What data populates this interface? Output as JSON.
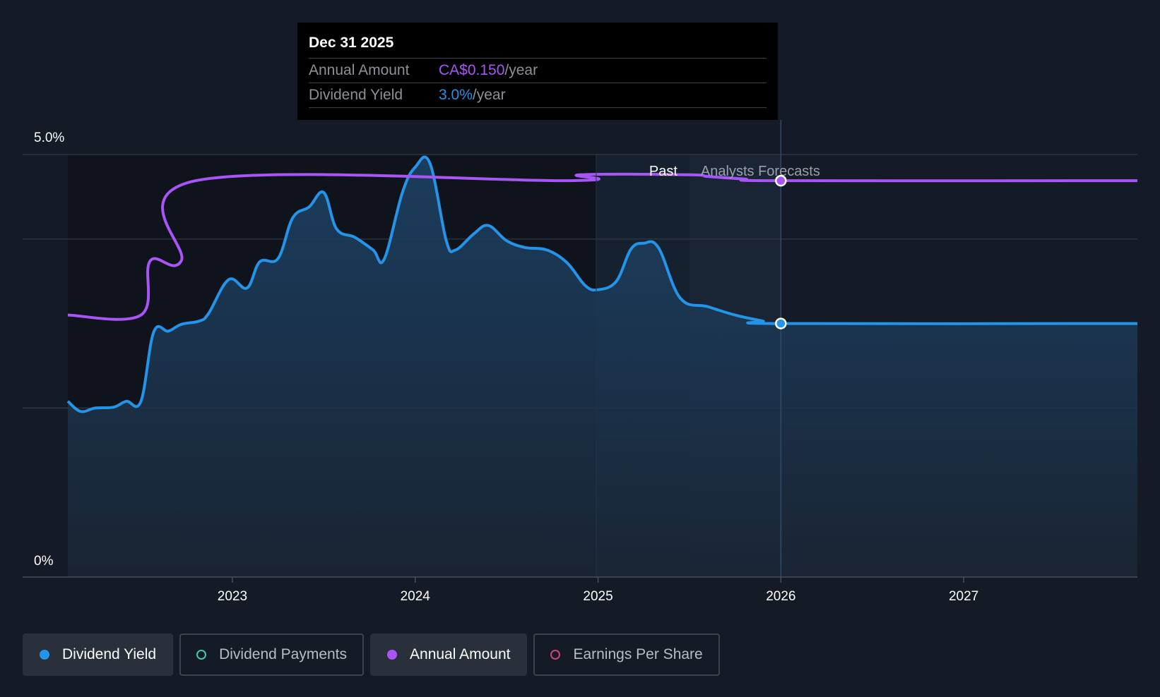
{
  "tooltip": {
    "date": "Dec 31 2025",
    "rows": [
      {
        "label": "Annual Amount",
        "value": "CA$0.150",
        "unit": "/year",
        "color": "#a855f7"
      },
      {
        "label": "Dividend Yield",
        "value": "3.0%",
        "unit": "/year",
        "color": "#2394e8"
      }
    ]
  },
  "regions": {
    "past_label": "Past",
    "forecast_label": "Analysts Forecasts"
  },
  "legend": [
    {
      "label": "Dividend Yield",
      "color": "#2394e8",
      "filled": true,
      "active": true
    },
    {
      "label": "Dividend Payments",
      "color": "#3cc9b8",
      "filled": false,
      "active": false
    },
    {
      "label": "Annual Amount",
      "color": "#a855f7",
      "filled": true,
      "active": true
    },
    {
      "label": "Earnings Per Share",
      "color": "#d0437a",
      "filled": false,
      "active": false
    }
  ],
  "chart_data": {
    "type": "line",
    "y_axis": {
      "min": 0,
      "max": 5.0,
      "unit": "%",
      "tick_labels": [
        "5.0%",
        "0%"
      ]
    },
    "x_axis": {
      "min": 2022.1,
      "max": 2027.95,
      "ticks": [
        2023,
        2024,
        2025,
        2026,
        2027
      ]
    },
    "past_end": 2025.5,
    "forecast_band_start": 2024.99,
    "forecast_band_end": 2026.0,
    "series": [
      {
        "name": "Dividend Yield",
        "unit": "%",
        "color": "#2394e8",
        "fill": true,
        "points": [
          [
            2022.1,
            2.08
          ],
          [
            2022.17,
            1.96
          ],
          [
            2022.25,
            2.0
          ],
          [
            2022.35,
            2.01
          ],
          [
            2022.42,
            2.08
          ],
          [
            2022.5,
            2.08
          ],
          [
            2022.57,
            2.9
          ],
          [
            2022.65,
            2.91
          ],
          [
            2022.72,
            2.99
          ],
          [
            2022.82,
            3.03
          ],
          [
            2022.87,
            3.12
          ],
          [
            2022.98,
            3.52
          ],
          [
            2023.08,
            3.42
          ],
          [
            2023.15,
            3.73
          ],
          [
            2023.25,
            3.77
          ],
          [
            2023.33,
            4.25
          ],
          [
            2023.42,
            4.38
          ],
          [
            2023.5,
            4.55
          ],
          [
            2023.57,
            4.12
          ],
          [
            2023.67,
            4.02
          ],
          [
            2023.77,
            3.87
          ],
          [
            2023.83,
            3.76
          ],
          [
            2023.93,
            4.55
          ],
          [
            2024.0,
            4.85
          ],
          [
            2024.08,
            4.9
          ],
          [
            2024.17,
            3.98
          ],
          [
            2024.22,
            3.87
          ],
          [
            2024.32,
            4.06
          ],
          [
            2024.4,
            4.16
          ],
          [
            2024.5,
            3.98
          ],
          [
            2024.6,
            3.9
          ],
          [
            2024.72,
            3.87
          ],
          [
            2024.83,
            3.72
          ],
          [
            2024.93,
            3.45
          ],
          [
            2025.0,
            3.4
          ],
          [
            2025.1,
            3.5
          ],
          [
            2025.18,
            3.88
          ],
          [
            2025.25,
            3.95
          ],
          [
            2025.33,
            3.9
          ],
          [
            2025.45,
            3.3
          ],
          [
            2025.6,
            3.2
          ],
          [
            2025.75,
            3.1
          ],
          [
            2025.9,
            3.03
          ],
          [
            2026.0,
            3.0
          ],
          [
            2027.95,
            3.0
          ]
        ]
      },
      {
        "name": "Annual Amount",
        "unit": "CA$/year",
        "color": "#a855f7",
        "fill": false,
        "points": [
          [
            2022.1,
            3.1
          ],
          [
            2022.5,
            3.1
          ],
          [
            2022.55,
            3.74
          ],
          [
            2022.72,
            3.74
          ],
          [
            2022.8,
            4.69
          ],
          [
            2024.85,
            4.69
          ],
          [
            2024.9,
            4.76
          ],
          [
            2025.5,
            4.76
          ],
          [
            2025.6,
            4.74
          ],
          [
            2025.8,
            4.71
          ],
          [
            2026.0,
            4.69
          ],
          [
            2027.95,
            4.69
          ]
        ]
      }
    ],
    "markers": [
      {
        "series": "Annual Amount",
        "x": 2026.0,
        "y": 4.69
      },
      {
        "series": "Dividend Yield",
        "x": 2026.0,
        "y": 3.0
      }
    ]
  }
}
